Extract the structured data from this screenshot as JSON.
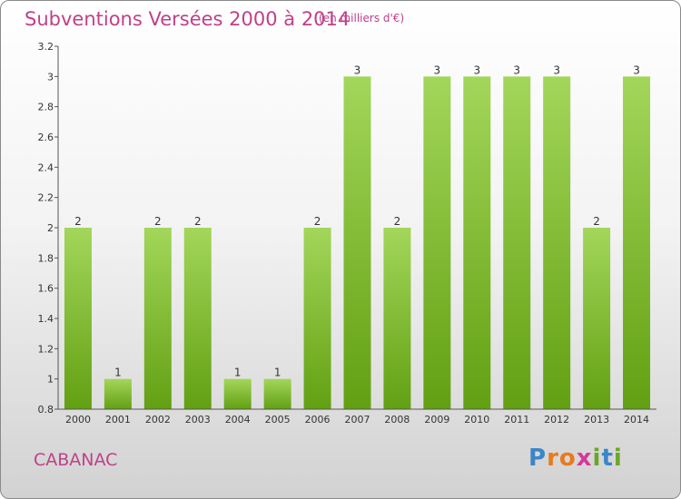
{
  "title": "Subventions Versées 2000 à 2014",
  "unit_note": "(en milliers d'€)",
  "commune": "CABANAC",
  "logo": {
    "letters": [
      "P",
      "r",
      "o",
      "x",
      "i",
      "t",
      "i"
    ],
    "colors": [
      "#3a86c8",
      "#e87a1e",
      "#e87a1e",
      "#d6389a",
      "#6aa629",
      "#3a86c8",
      "#6aa629"
    ]
  },
  "colors": {
    "bar_top": "#a3d65a",
    "bar_bottom": "#62a012",
    "text_accent": "#c0408a"
  },
  "chart_data": {
    "type": "bar",
    "title": "Subventions Versées 2000 à 2014",
    "subtitle": "(en milliers d'€)",
    "categories": [
      "2000",
      "2001",
      "2002",
      "2003",
      "2004",
      "2005",
      "2006",
      "2007",
      "2008",
      "2009",
      "2010",
      "2011",
      "2012",
      "2013",
      "2014"
    ],
    "values": [
      2,
      1,
      2,
      2,
      1,
      1,
      2,
      3,
      2,
      3,
      3,
      3,
      3,
      2,
      3
    ],
    "data_labels": [
      "2",
      "1",
      "2",
      "2",
      "1",
      "1",
      "2",
      "3",
      "2",
      "3",
      "3",
      "3",
      "3",
      "2",
      "3"
    ],
    "ylim": [
      0.8,
      3.2
    ],
    "yticks": [
      0.8,
      1,
      1.2,
      1.4,
      1.6,
      1.8,
      2,
      2.2,
      2.4,
      2.6,
      2.8,
      3,
      3.2
    ],
    "ytick_labels": [
      "0.8",
      "1",
      "1.2",
      "1.4",
      "1.6",
      "1.8",
      "2",
      "2.2",
      "2.4",
      "2.6",
      "2.8",
      "3",
      "3.2"
    ],
    "grid": false,
    "xlabel": "",
    "ylabel": ""
  }
}
